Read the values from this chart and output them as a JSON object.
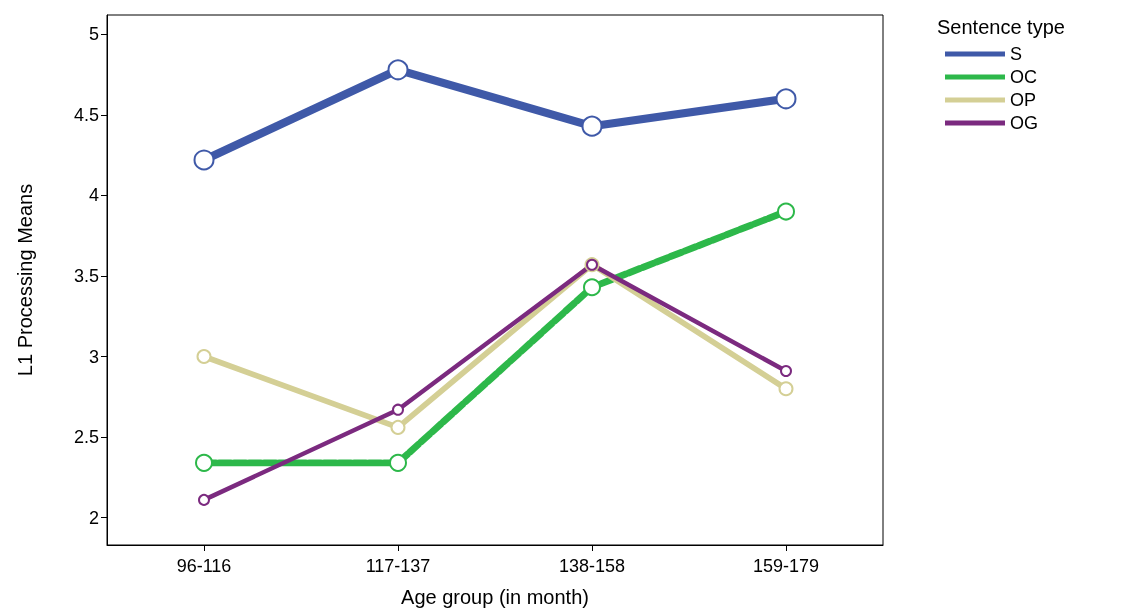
{
  "chart_data": {
    "type": "line",
    "xlabel": "Age group (in month)",
    "ylabel": "L1 Processing Means",
    "legend_title": "Sentence type",
    "categories": [
      "96-116",
      "117-137",
      "138-158",
      "159-179"
    ],
    "series": [
      {
        "name": "S",
        "color": "#3f59a8",
        "values": [
          4.22,
          4.78,
          4.43,
          4.6
        ]
      },
      {
        "name": "OC",
        "color": "#2db84a",
        "line_style": "dashed",
        "values": [
          2.34,
          2.34,
          3.43,
          3.9
        ]
      },
      {
        "name": "OP",
        "color": "#d4cf95",
        "values": [
          3.0,
          2.56,
          3.57,
          2.8
        ]
      },
      {
        "name": "OG",
        "color": "#7b2a7f",
        "values": [
          2.11,
          2.67,
          3.57,
          2.91
        ]
      }
    ],
    "ylim": [
      1.83,
      5.12
    ],
    "yticks": [
      2,
      2.5,
      3,
      3.5,
      4,
      4.5,
      5
    ],
    "grid": false,
    "legend": "top right",
    "marker": "circle",
    "line_style": "solid"
  }
}
